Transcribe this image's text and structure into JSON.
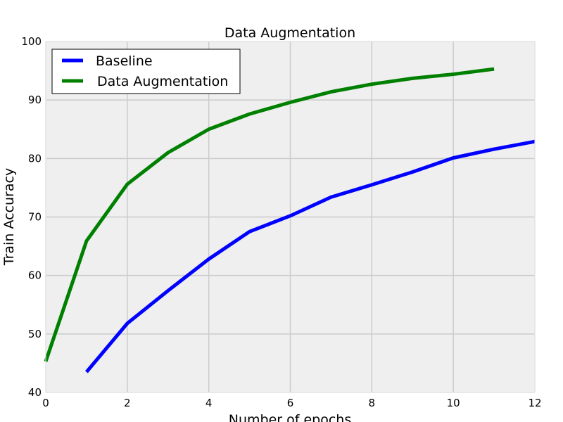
{
  "chart_data": {
    "type": "line",
    "title": "Data Augmentation",
    "xlabel": "Number of epochs",
    "ylabel": "Train Accuracy",
    "xlim": [
      0,
      12
    ],
    "ylim": [
      40,
      100
    ],
    "xticks": [
      0,
      2,
      4,
      6,
      8,
      10,
      12
    ],
    "yticks": [
      40,
      50,
      60,
      70,
      80,
      90,
      100
    ],
    "grid": true,
    "legend_position": "top-left",
    "series": [
      {
        "name": "Baseline",
        "color": "#0000ff",
        "x": [
          1,
          2,
          3,
          4,
          5,
          6,
          7,
          8,
          9,
          10,
          11,
          12
        ],
        "y": [
          43.5,
          51.8,
          57.4,
          62.8,
          67.5,
          70.2,
          73.4,
          75.5,
          77.7,
          80.1,
          81.6,
          82.9
        ]
      },
      {
        "name": "Data Augmentation",
        "color": "#008000",
        "x": [
          0,
          1,
          2,
          3,
          4,
          5,
          6,
          7,
          8,
          9,
          10,
          11
        ],
        "y": [
          45.3,
          65.9,
          75.6,
          81.0,
          85.0,
          87.6,
          89.6,
          91.4,
          92.7,
          93.7,
          94.4,
          95.3
        ]
      }
    ]
  }
}
